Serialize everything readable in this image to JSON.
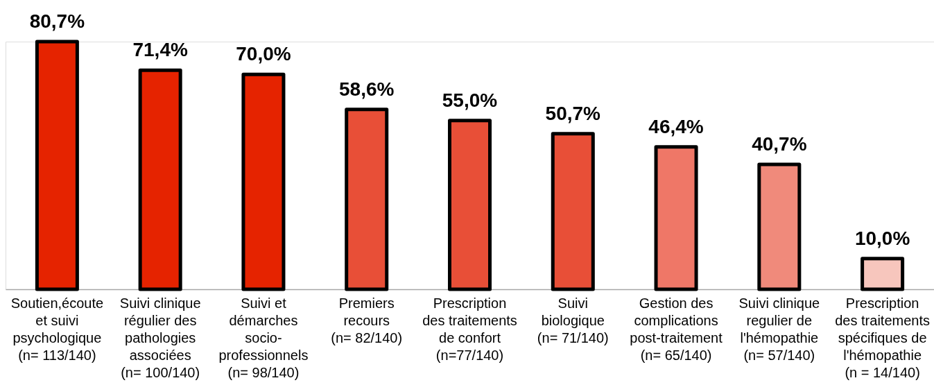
{
  "chart_data": {
    "type": "bar",
    "categories": [
      "Soutien,écoute et suivi psychologique (n= 113/140)",
      "Suivi clinique régulier des pathologies associées (n= 100/140)",
      "Suivi et démarches socio-professionnels (n= 98/140)",
      "Premiers recours (n= 82/140)",
      "Prescription des traitements de confort (n=77/140)",
      "Suivi biologique (n= 71/140)",
      "Gestion des complications post-traitement (n= 65/140)",
      "Suivi clinique regulier de l'hémopathie (n= 57/140)",
      "Prescription des traitements spécifiques de l'hémopathie (n = 14/140)"
    ],
    "values": [
      80.7,
      71.4,
      70.0,
      58.6,
      55.0,
      50.7,
      46.4,
      40.7,
      10.0
    ],
    "colors": [
      "#e52300",
      "#e52300",
      "#e52300",
      "#e84f37",
      "#e84f37",
      "#e84f37",
      "#ef7767",
      "#f08a7b",
      "#f7c6bd"
    ],
    "value_labels": [
      "80,7%",
      "71,4%",
      "70,0%",
      "58,6%",
      "55,0%",
      "50,7%",
      "46,4%",
      "40,7%",
      "10,0%"
    ],
    "tick_labels": "x"
  }
}
